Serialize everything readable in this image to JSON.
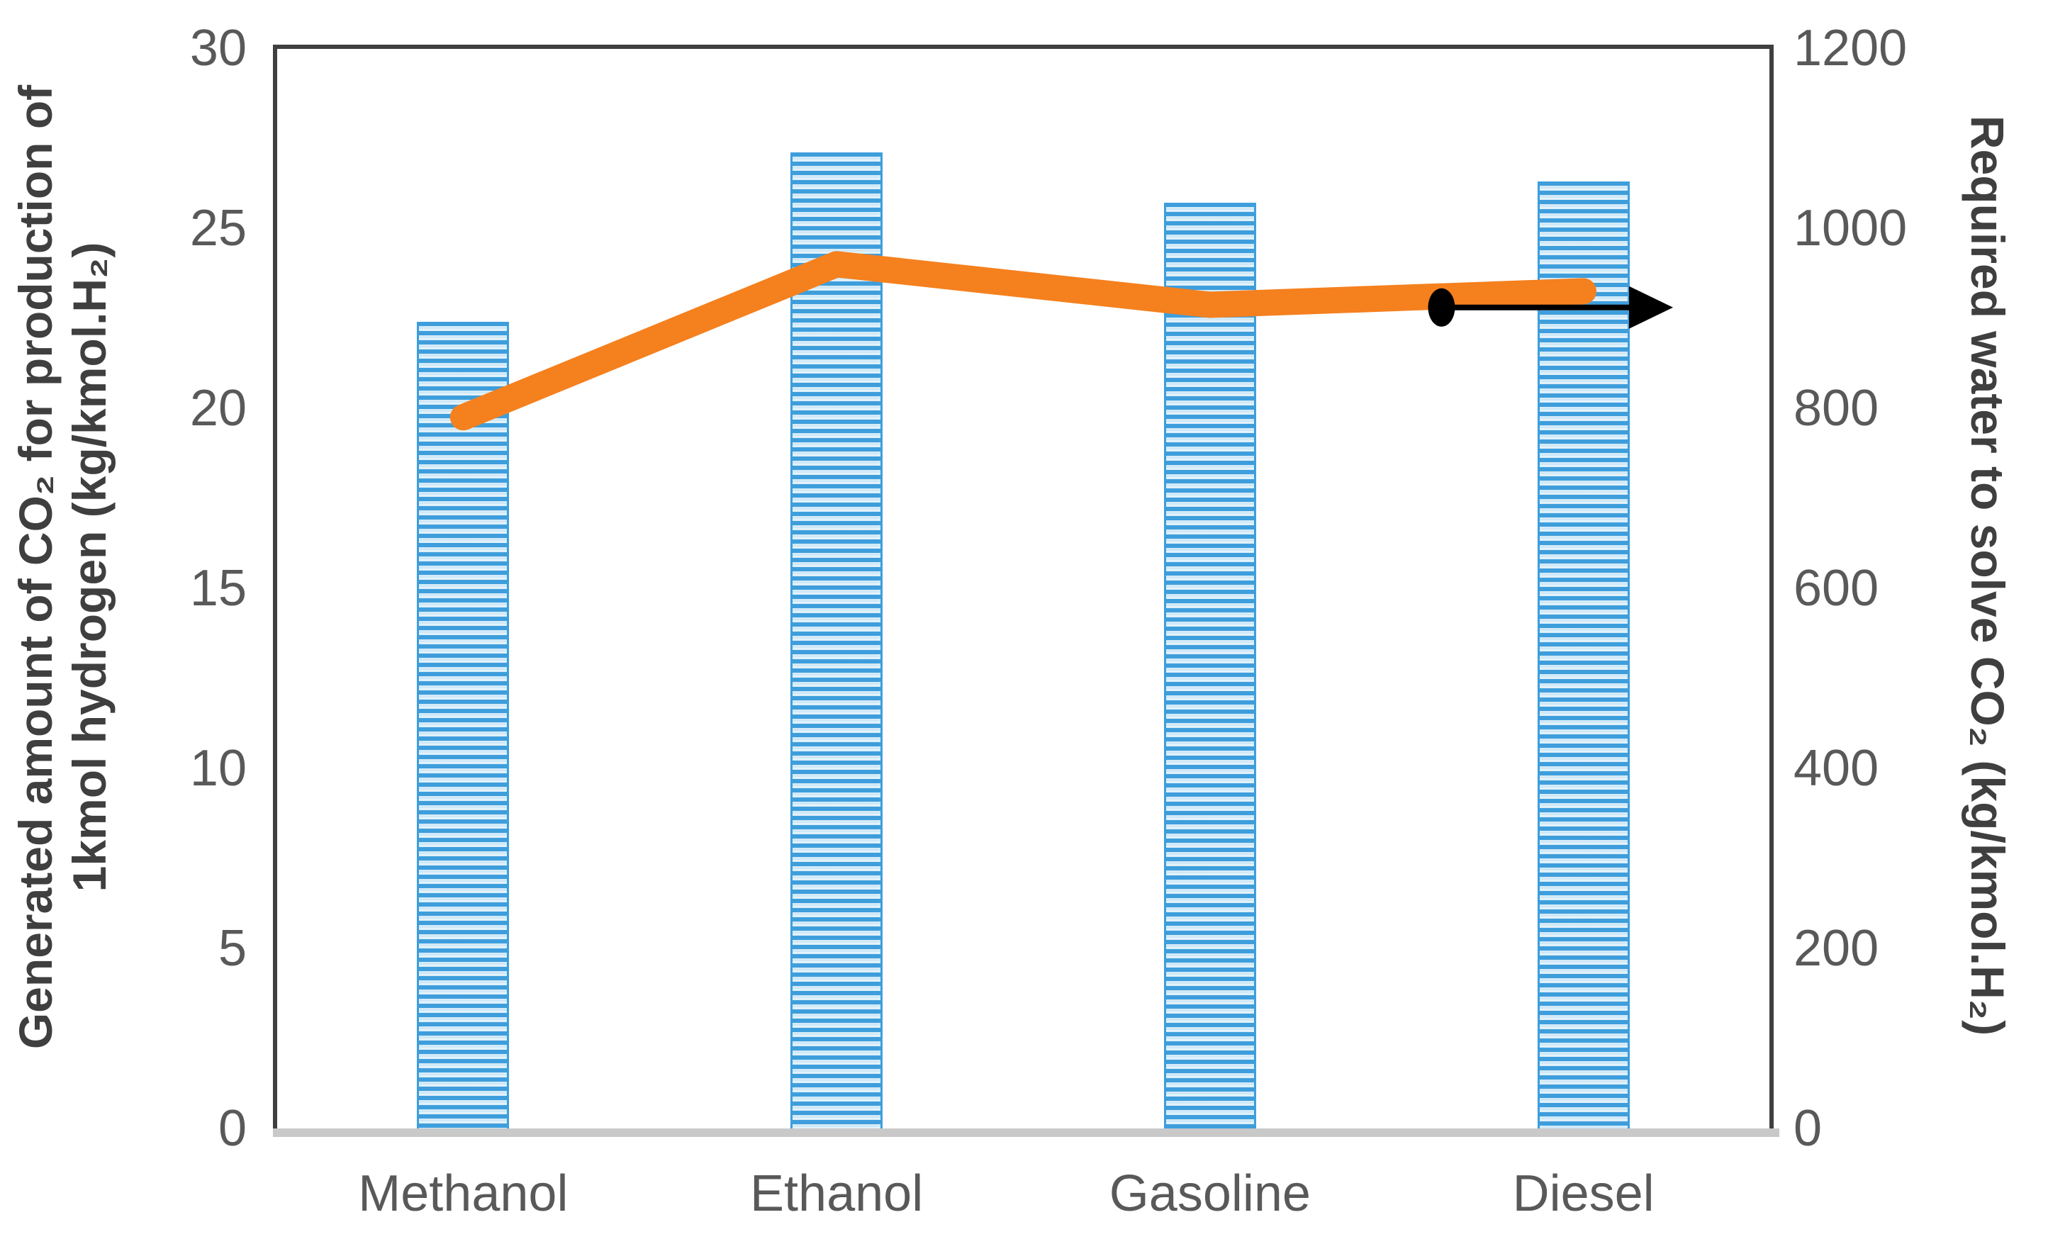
{
  "chart_data": {
    "type": "combo-bar-line",
    "title": "",
    "categories": [
      "Methanol",
      "Ethanol",
      "Gasoline",
      "Diesel"
    ],
    "series": [
      {
        "name": "Generated amount of CO₂ for production of 1kmol hydrogen",
        "type": "bar",
        "axis": "left",
        "values": [
          22.4,
          27.1,
          25.7,
          26.3
        ]
      },
      {
        "name": "Required water to solve CO₂",
        "type": "line",
        "axis": "right",
        "values": [
          790,
          960,
          915,
          930
        ]
      }
    ],
    "left_axis": {
      "label_line1": "Generated amount of CO₂ for production of",
      "label_line2": "1kmol hydrogen (kg/kmol.H₂)",
      "min": 0,
      "max": 30,
      "ticks": [
        30,
        25,
        20,
        15,
        10,
        5,
        0
      ]
    },
    "right_axis": {
      "label": "Required water to solve CO₂ (kg/kmol.H₂)",
      "min": 0,
      "max": 1200,
      "ticks": [
        1200,
        1000,
        800,
        600,
        400,
        200,
        0
      ]
    },
    "annotation": {
      "shape": "dot-with-right-arrow",
      "meaning": "line series refers to right axis",
      "axis": "right",
      "value": 912,
      "x_frac": 0.78,
      "arrow_tip_x_frac": 0.935,
      "color": "#000000"
    },
    "layout_hints": {
      "grid": false,
      "legend": "none",
      "plot_border": true
    },
    "colors": {
      "bar_stripe": "#3e9edc",
      "bar_background": "#d8ecf9",
      "line": "#f5801e",
      "tick_text": "#595959",
      "axis_title_text": "#3f3f3f",
      "plot_border": "#3f3f3f",
      "baseline": "#c9c9c9",
      "annotation": "#000000"
    }
  }
}
